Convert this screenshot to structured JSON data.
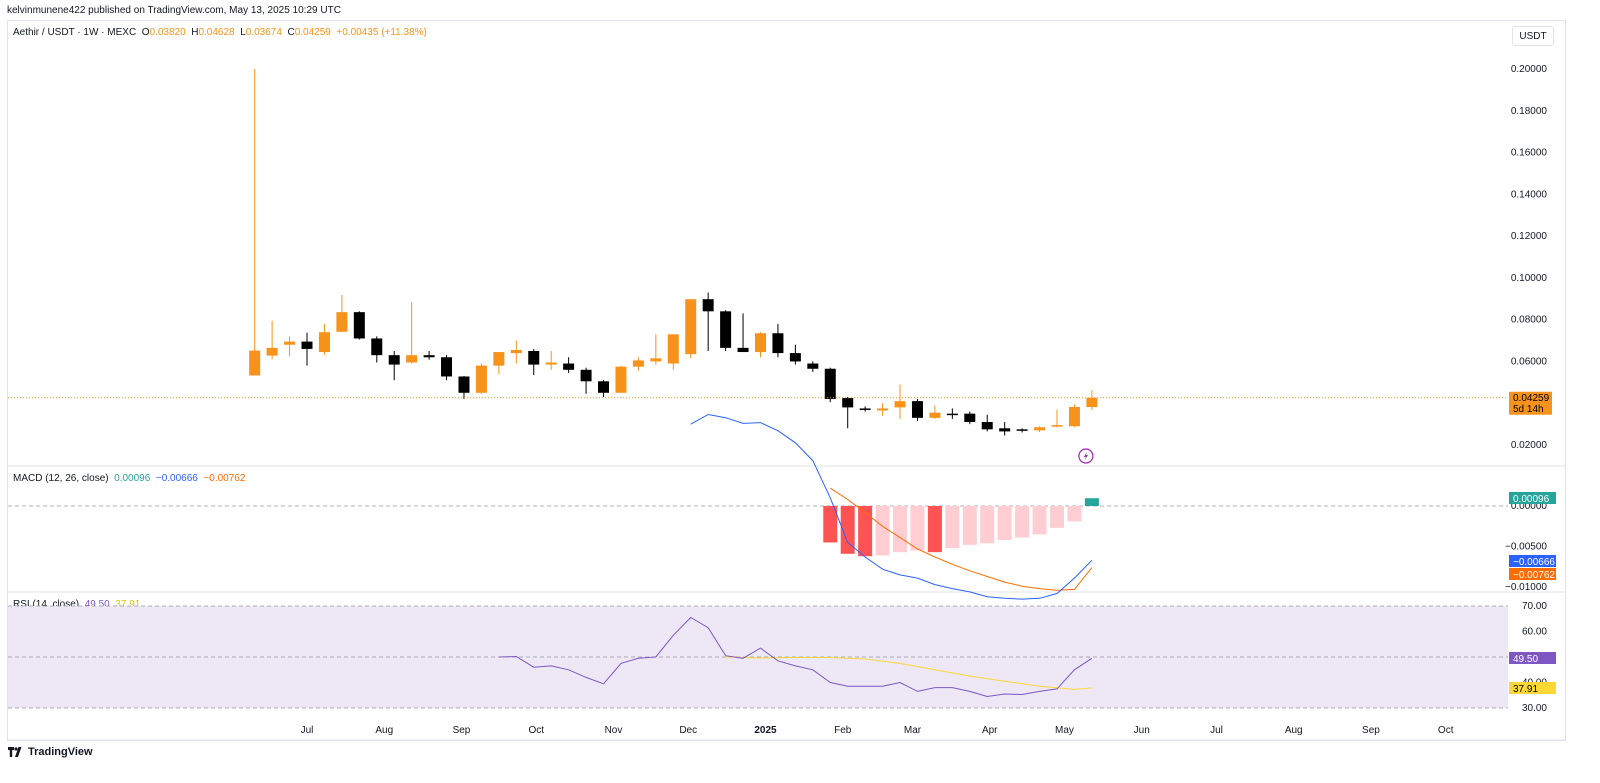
{
  "header": {
    "published": "kelvinmunene422 published on TradingView.com, May 13, 2025 10:29 UTC"
  },
  "footer": {
    "brand": "TradingView",
    "logo_icon": "tradingview-logo-icon"
  },
  "currency_button": "USDT",
  "colors": {
    "up": "#f7931a",
    "down": "#000000",
    "macd": "#2962ff",
    "signal": "#ff6d00",
    "rsi": "#7e57c2",
    "rsi_ma": "#fdd835",
    "hist_pos": "#26a69a",
    "hist_neg": "#ff5252",
    "hist_neg_light": "#ffcdd2",
    "rsi_band": "#ede7f6"
  },
  "legend": {
    "symbol": "Aethir / USDT · 1W · MEXC",
    "o_label": "O",
    "o_val": "0.03820",
    "h_label": "H",
    "h_val": "0.04628",
    "l_label": "L",
    "l_val": "0.03674",
    "c_label": "C",
    "c_val": "0.04259",
    "change": "+0.00435 (+11.38%)",
    "macd_title": "MACD (12, 26, close)",
    "macd_v1": "0.00096",
    "macd_v2": "−0.00666",
    "macd_v3": "−0.00762",
    "rsi_title": "RSI (14, close)",
    "rsi_v1": "49.50",
    "rsi_v2": "37.91"
  },
  "price_tag": {
    "price": "0.04259",
    "countdown": "5d 14h"
  },
  "chart_data": [
    {
      "type": "candlestick",
      "title": "Aethir / USDT · 1W · MEXC",
      "ylim": [
        0.01,
        0.205
      ],
      "y_ticks": [
        "0.20000",
        "0.18000",
        "0.16000",
        "0.14000",
        "0.12000",
        "0.10000",
        "0.08000",
        "0.06000",
        "0.04000",
        "0.02000"
      ],
      "y_tick_values": [
        0.2,
        0.18,
        0.16,
        0.14,
        0.12,
        0.1,
        0.08,
        0.06,
        0.04,
        0.02
      ],
      "x_ticks": [
        "Jul",
        "Aug",
        "Sep",
        "Oct",
        "Nov",
        "Dec",
        "2025",
        "Feb",
        "Mar",
        "Apr",
        "May",
        "Jun",
        "Jul",
        "Aug",
        "Sep",
        "Oct"
      ],
      "x_tick_dates": [
        "2024-07-01",
        "2024-08-01",
        "2024-09-01",
        "2024-10-01",
        "2024-11-01",
        "2024-12-01",
        "2025-01-01",
        "2025-02-01",
        "2025-03-01",
        "2025-04-01",
        "2025-05-01",
        "2025-06-01",
        "2025-07-01",
        "2025-08-01",
        "2025-09-01",
        "2025-10-01"
      ],
      "x_range": [
        "2024-03-03",
        "2025-10-26"
      ],
      "candles": [
        {
          "date": "2024-06-10",
          "o": 0.0533,
          "h": 0.2,
          "l": 0.0533,
          "c": 0.0652
        },
        {
          "date": "2024-06-17",
          "o": 0.0628,
          "h": 0.0795,
          "l": 0.061,
          "c": 0.0665
        },
        {
          "date": "2024-06-24",
          "o": 0.068,
          "h": 0.072,
          "l": 0.0625,
          "c": 0.0695
        },
        {
          "date": "2024-07-01",
          "o": 0.0695,
          "h": 0.0738,
          "l": 0.058,
          "c": 0.066
        },
        {
          "date": "2024-07-08",
          "o": 0.0645,
          "h": 0.078,
          "l": 0.063,
          "c": 0.074
        },
        {
          "date": "2024-07-15",
          "o": 0.0742,
          "h": 0.0918,
          "l": 0.074,
          "c": 0.0836
        },
        {
          "date": "2024-07-22",
          "o": 0.0836,
          "h": 0.084,
          "l": 0.0705,
          "c": 0.071
        },
        {
          "date": "2024-07-29",
          "o": 0.071,
          "h": 0.072,
          "l": 0.0595,
          "c": 0.063
        },
        {
          "date": "2024-08-05",
          "o": 0.063,
          "h": 0.065,
          "l": 0.051,
          "c": 0.0585
        },
        {
          "date": "2024-08-12",
          "o": 0.0595,
          "h": 0.0885,
          "l": 0.059,
          "c": 0.063
        },
        {
          "date": "2024-08-19",
          "o": 0.063,
          "h": 0.065,
          "l": 0.0608,
          "c": 0.062
        },
        {
          "date": "2024-08-26",
          "o": 0.062,
          "h": 0.063,
          "l": 0.051,
          "c": 0.0528
        },
        {
          "date": "2024-09-02",
          "o": 0.0528,
          "h": 0.053,
          "l": 0.042,
          "c": 0.045
        },
        {
          "date": "2024-09-09",
          "o": 0.045,
          "h": 0.059,
          "l": 0.0445,
          "c": 0.058
        },
        {
          "date": "2024-09-16",
          "o": 0.058,
          "h": 0.064,
          "l": 0.054,
          "c": 0.0645
        },
        {
          "date": "2024-09-23",
          "o": 0.064,
          "h": 0.07,
          "l": 0.059,
          "c": 0.0655
        },
        {
          "date": "2024-09-30",
          "o": 0.065,
          "h": 0.066,
          "l": 0.0535,
          "c": 0.0585
        },
        {
          "date": "2024-10-07",
          "o": 0.0585,
          "h": 0.065,
          "l": 0.056,
          "c": 0.0595
        },
        {
          "date": "2024-10-14",
          "o": 0.059,
          "h": 0.062,
          "l": 0.0545,
          "c": 0.056
        },
        {
          "date": "2024-10-21",
          "o": 0.056,
          "h": 0.057,
          "l": 0.0445,
          "c": 0.0505
        },
        {
          "date": "2024-10-28",
          "o": 0.0505,
          "h": 0.051,
          "l": 0.043,
          "c": 0.045
        },
        {
          "date": "2024-11-04",
          "o": 0.045,
          "h": 0.058,
          "l": 0.045,
          "c": 0.0575
        },
        {
          "date": "2024-11-11",
          "o": 0.0575,
          "h": 0.062,
          "l": 0.0555,
          "c": 0.0605
        },
        {
          "date": "2024-11-18",
          "o": 0.06,
          "h": 0.073,
          "l": 0.0585,
          "c": 0.0615
        },
        {
          "date": "2024-11-25",
          "o": 0.059,
          "h": 0.073,
          "l": 0.056,
          "c": 0.073
        },
        {
          "date": "2024-12-02",
          "o": 0.0635,
          "h": 0.089,
          "l": 0.0615,
          "c": 0.0898
        },
        {
          "date": "2024-12-09",
          "o": 0.0898,
          "h": 0.093,
          "l": 0.065,
          "c": 0.084
        },
        {
          "date": "2024-12-16",
          "o": 0.084,
          "h": 0.0845,
          "l": 0.065,
          "c": 0.0665
        },
        {
          "date": "2024-12-23",
          "o": 0.0665,
          "h": 0.083,
          "l": 0.065,
          "c": 0.0645
        },
        {
          "date": "2024-12-30",
          "o": 0.0645,
          "h": 0.074,
          "l": 0.062,
          "c": 0.0735
        },
        {
          "date": "2025-01-06",
          "o": 0.0735,
          "h": 0.078,
          "l": 0.062,
          "c": 0.064
        },
        {
          "date": "2025-01-13",
          "o": 0.064,
          "h": 0.068,
          "l": 0.0585,
          "c": 0.06
        },
        {
          "date": "2025-01-20",
          "o": 0.059,
          "h": 0.06,
          "l": 0.055,
          "c": 0.0565
        },
        {
          "date": "2025-01-27",
          "o": 0.0565,
          "h": 0.057,
          "l": 0.0405,
          "c": 0.042
        },
        {
          "date": "2025-02-03",
          "o": 0.0425,
          "h": 0.043,
          "l": 0.028,
          "c": 0.038
        },
        {
          "date": "2025-02-10",
          "o": 0.0375,
          "h": 0.0385,
          "l": 0.036,
          "c": 0.037
        },
        {
          "date": "2025-02-17",
          "o": 0.0365,
          "h": 0.04,
          "l": 0.034,
          "c": 0.0375
        },
        {
          "date": "2025-02-24",
          "o": 0.038,
          "h": 0.049,
          "l": 0.0325,
          "c": 0.041
        },
        {
          "date": "2025-03-03",
          "o": 0.041,
          "h": 0.042,
          "l": 0.0315,
          "c": 0.033
        },
        {
          "date": "2025-03-10",
          "o": 0.033,
          "h": 0.039,
          "l": 0.0325,
          "c": 0.0355
        },
        {
          "date": "2025-03-17",
          "o": 0.035,
          "h": 0.0375,
          "l": 0.0325,
          "c": 0.0345
        },
        {
          "date": "2025-03-24",
          "o": 0.035,
          "h": 0.036,
          "l": 0.03,
          "c": 0.031
        },
        {
          "date": "2025-03-31",
          "o": 0.031,
          "h": 0.0345,
          "l": 0.0265,
          "c": 0.0275
        },
        {
          "date": "2025-04-07",
          "o": 0.028,
          "h": 0.031,
          "l": 0.0245,
          "c": 0.0265
        },
        {
          "date": "2025-04-14",
          "o": 0.0275,
          "h": 0.028,
          "l": 0.026,
          "c": 0.0272
        },
        {
          "date": "2025-04-21",
          "o": 0.027,
          "h": 0.029,
          "l": 0.0262,
          "c": 0.0285
        },
        {
          "date": "2025-04-28",
          "o": 0.029,
          "h": 0.037,
          "l": 0.0285,
          "c": 0.0295
        },
        {
          "date": "2025-05-05",
          "o": 0.029,
          "h": 0.0395,
          "l": 0.0285,
          "c": 0.0382
        },
        {
          "date": "2025-05-12",
          "o": 0.0382,
          "h": 0.0463,
          "l": 0.0367,
          "c": 0.0426
        }
      ]
    },
    {
      "type": "macd",
      "title": "MACD (12, 26, close)",
      "ylim": [
        -0.0115,
        0.0115
      ],
      "y_ticks": [
        "0.00000",
        "−0.00500",
        "−0.01000"
      ],
      "y_tick_values": [
        0.0,
        -0.005,
        -0.01
      ],
      "macd": [
        {
          "date": "2024-12-02",
          "v": 0.0101
        },
        {
          "date": "2024-12-09",
          "v": 0.0113
        },
        {
          "date": "2024-12-16",
          "v": 0.0109
        },
        {
          "date": "2024-12-23",
          "v": 0.0102
        },
        {
          "date": "2024-12-30",
          "v": 0.0103
        },
        {
          "date": "2025-01-06",
          "v": 0.0093
        },
        {
          "date": "2025-01-13",
          "v": 0.0078
        },
        {
          "date": "2025-01-20",
          "v": 0.0056
        },
        {
          "date": "2025-01-27",
          "v": 0.001
        },
        {
          "date": "2025-02-03",
          "v": -0.0045
        },
        {
          "date": "2025-02-10",
          "v": -0.0063
        },
        {
          "date": "2025-02-17",
          "v": -0.0078
        },
        {
          "date": "2025-02-24",
          "v": -0.0085
        },
        {
          "date": "2025-03-03",
          "v": -0.0089
        },
        {
          "date": "2025-03-10",
          "v": -0.0097
        },
        {
          "date": "2025-03-17",
          "v": -0.0102
        },
        {
          "date": "2025-03-24",
          "v": -0.0106
        },
        {
          "date": "2025-03-31",
          "v": -0.0112
        },
        {
          "date": "2025-04-07",
          "v": -0.0114
        },
        {
          "date": "2025-04-14",
          "v": -0.0115
        },
        {
          "date": "2025-04-21",
          "v": -0.0114
        },
        {
          "date": "2025-04-28",
          "v": -0.0108
        },
        {
          "date": "2025-05-05",
          "v": -0.0089
        },
        {
          "date": "2025-05-12",
          "v": -0.0067
        }
      ],
      "signal": [
        {
          "date": "2025-01-27",
          "v": 0.0022
        },
        {
          "date": "2025-02-03",
          "v": 0.0008
        },
        {
          "date": "2025-02-10",
          "v": -0.0008
        },
        {
          "date": "2025-02-17",
          "v": -0.0025
        },
        {
          "date": "2025-02-24",
          "v": -0.0039
        },
        {
          "date": "2025-03-03",
          "v": -0.0053
        },
        {
          "date": "2025-03-10",
          "v": -0.0063
        },
        {
          "date": "2025-03-17",
          "v": -0.0072
        },
        {
          "date": "2025-03-24",
          "v": -0.008
        },
        {
          "date": "2025-03-31",
          "v": -0.0087
        },
        {
          "date": "2025-04-07",
          "v": -0.0094
        },
        {
          "date": "2025-04-14",
          "v": -0.0099
        },
        {
          "date": "2025-04-21",
          "v": -0.0102
        },
        {
          "date": "2025-04-28",
          "v": -0.0104
        },
        {
          "date": "2025-05-05",
          "v": -0.0103
        },
        {
          "date": "2025-05-12",
          "v": -0.0076
        }
      ],
      "histogram": [
        {
          "date": "2025-01-27",
          "v": -0.0045,
          "strong": true
        },
        {
          "date": "2025-02-03",
          "v": -0.0059,
          "strong": true
        },
        {
          "date": "2025-02-10",
          "v": -0.0062,
          "strong": true
        },
        {
          "date": "2025-02-17",
          "v": -0.0061,
          "strong": false
        },
        {
          "date": "2025-02-24",
          "v": -0.0057,
          "strong": false
        },
        {
          "date": "2025-03-03",
          "v": -0.0055,
          "strong": false
        },
        {
          "date": "2025-03-10",
          "v": -0.0057,
          "strong": true
        },
        {
          "date": "2025-03-17",
          "v": -0.0052,
          "strong": false
        },
        {
          "date": "2025-03-24",
          "v": -0.0048,
          "strong": false
        },
        {
          "date": "2025-03-31",
          "v": -0.0046,
          "strong": false
        },
        {
          "date": "2025-04-07",
          "v": -0.0042,
          "strong": false
        },
        {
          "date": "2025-04-14",
          "v": -0.0039,
          "strong": false
        },
        {
          "date": "2025-04-21",
          "v": -0.0035,
          "strong": false
        },
        {
          "date": "2025-04-28",
          "v": -0.0027,
          "strong": false
        },
        {
          "date": "2025-05-05",
          "v": -0.0019,
          "strong": false
        },
        {
          "date": "2025-05-12",
          "v": 0.00096,
          "strong": true
        }
      ],
      "tags": {
        "hist": "0.00096",
        "macd": "−0.00666",
        "signal": "−0.00762"
      }
    },
    {
      "type": "rsi",
      "title": "RSI (14, close)",
      "ylim": [
        28,
        72
      ],
      "y_ticks": [
        "70.00",
        "60.00",
        "40.00",
        "30.00"
      ],
      "y_tick_values": [
        70,
        60,
        40,
        30
      ],
      "bands": [
        30,
        50,
        70
      ],
      "rsi": [
        {
          "date": "2024-09-16",
          "v": 50.0
        },
        {
          "date": "2024-09-23",
          "v": 50.2
        },
        {
          "date": "2024-09-30",
          "v": 46.0
        },
        {
          "date": "2024-10-07",
          "v": 46.5
        },
        {
          "date": "2024-10-14",
          "v": 45.0
        },
        {
          "date": "2024-10-21",
          "v": 42.0
        },
        {
          "date": "2024-10-28",
          "v": 39.5
        },
        {
          "date": "2024-11-04",
          "v": 47.5
        },
        {
          "date": "2024-11-11",
          "v": 49.5
        },
        {
          "date": "2024-11-18",
          "v": 50.0
        },
        {
          "date": "2024-11-25",
          "v": 58.5
        },
        {
          "date": "2024-12-02",
          "v": 65.5
        },
        {
          "date": "2024-12-09",
          "v": 61.5
        },
        {
          "date": "2024-12-16",
          "v": 50.5
        },
        {
          "date": "2024-12-23",
          "v": 49.5
        },
        {
          "date": "2024-12-30",
          "v": 53.5
        },
        {
          "date": "2025-01-06",
          "v": 48.5
        },
        {
          "date": "2025-01-13",
          "v": 46.5
        },
        {
          "date": "2025-01-20",
          "v": 45.0
        },
        {
          "date": "2025-01-27",
          "v": 40.0
        },
        {
          "date": "2025-02-03",
          "v": 38.5
        },
        {
          "date": "2025-02-10",
          "v": 38.5
        },
        {
          "date": "2025-02-17",
          "v": 38.5
        },
        {
          "date": "2025-02-24",
          "v": 40.0
        },
        {
          "date": "2025-03-03",
          "v": 36.5
        },
        {
          "date": "2025-03-10",
          "v": 38.0
        },
        {
          "date": "2025-03-17",
          "v": 38.0
        },
        {
          "date": "2025-03-24",
          "v": 36.5
        },
        {
          "date": "2025-03-31",
          "v": 34.5
        },
        {
          "date": "2025-04-07",
          "v": 35.5
        },
        {
          "date": "2025-04-14",
          "v": 35.3
        },
        {
          "date": "2025-04-21",
          "v": 36.5
        },
        {
          "date": "2025-04-28",
          "v": 37.5
        },
        {
          "date": "2025-05-05",
          "v": 45.0
        },
        {
          "date": "2025-05-12",
          "v": 49.5
        }
      ],
      "rsi_ma": [
        {
          "date": "2024-12-16",
          "v": 50.0
        },
        {
          "date": "2024-12-30",
          "v": 49.6
        },
        {
          "date": "2025-01-13",
          "v": 49.8
        },
        {
          "date": "2025-01-27",
          "v": 49.8
        },
        {
          "date": "2025-02-10",
          "v": 49.2
        },
        {
          "date": "2025-02-24",
          "v": 47.5
        },
        {
          "date": "2025-03-10",
          "v": 45.0
        },
        {
          "date": "2025-03-24",
          "v": 42.5
        },
        {
          "date": "2025-04-07",
          "v": 40.5
        },
        {
          "date": "2025-04-21",
          "v": 38.5
        },
        {
          "date": "2025-05-05",
          "v": 37.3
        },
        {
          "date": "2025-05-12",
          "v": 37.9
        }
      ],
      "tags": {
        "rsi": "49.50",
        "ma": "37.91"
      }
    }
  ]
}
